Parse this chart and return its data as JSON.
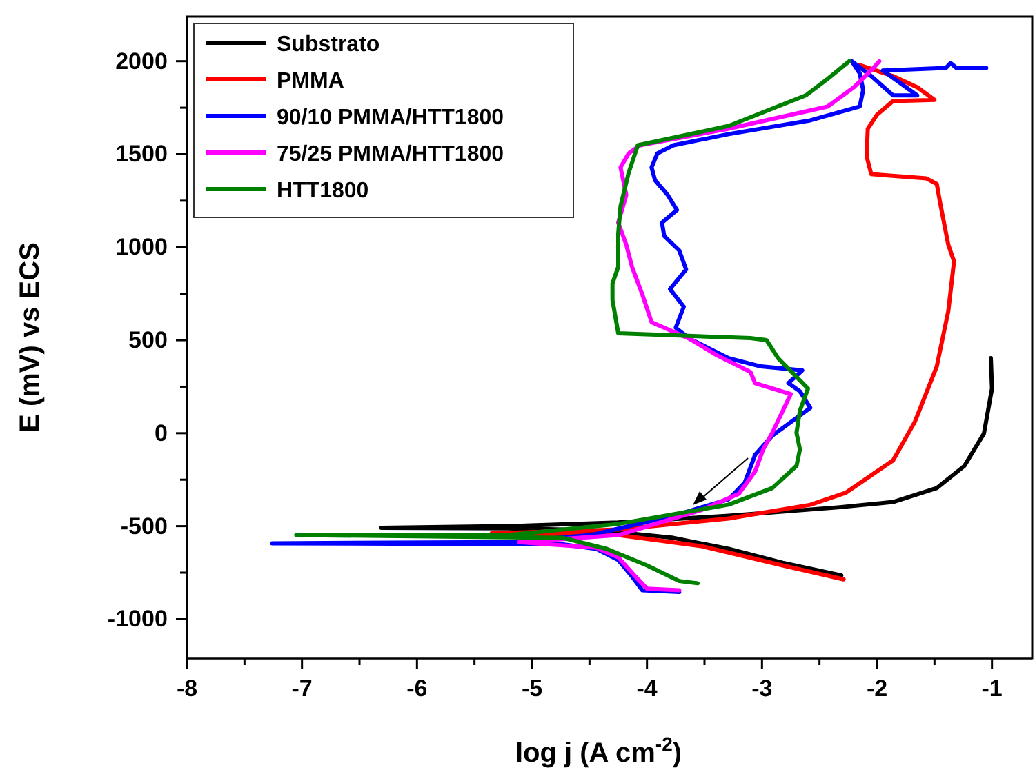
{
  "chart_data": {
    "type": "line",
    "xlabel": "log j (A cm$^{-2}$)",
    "ylabel": "E (mV) vs ECS",
    "xlim": [
      -8,
      -0.65
    ],
    "ylim": [
      -1210,
      2240
    ],
    "xticks": [
      -8,
      {
        "value": -7.5,
        "label": null
      },
      -7,
      {
        "value": -6.5,
        "label": null
      },
      -6,
      {
        "value": -5.5,
        "label": null
      },
      -5,
      {
        "value": -4.5,
        "label": null
      },
      -4,
      {
        "value": -3.5,
        "label": null
      },
      -3,
      {
        "value": -2.5,
        "label": null
      },
      -2,
      {
        "value": -1.5,
        "label": null
      },
      -1
    ],
    "yticks": [
      -1000,
      {
        "value": -750,
        "label": null
      },
      -500,
      {
        "value": -250,
        "label": null
      },
      0,
      {
        "value": 250,
        "label": null
      },
      500,
      {
        "value": 750,
        "label": null
      },
      1000,
      {
        "value": 1250,
        "label": null
      },
      1500,
      {
        "value": 1750,
        "label": null
      },
      2000
    ],
    "grid": false,
    "legend": "top left",
    "marker": "none",
    "line_style": "solid",
    "series": [
      {
        "name": "Substrato",
        "color": "#000000",
        "x": [
          -2.31,
          -2.82,
          -3.29,
          -3.77,
          -4.25,
          -4.73,
          -5.21,
          -6.31,
          -5.21,
          -4.25,
          -3.29,
          -2.34,
          -1.86,
          -1.48,
          -1.24,
          -1.07,
          -1.0,
          -1.01
        ],
        "values": [
          -765,
          -697,
          -622,
          -563,
          -533,
          -518,
          -512,
          -509,
          -500,
          -480,
          -444,
          -399,
          -370,
          -295,
          -176,
          -2,
          240,
          404
        ]
      },
      {
        "name": "PMMA",
        "color": "#ff0000",
        "x": [
          -2.29,
          -2.82,
          -3.53,
          -4.25,
          -5.35,
          -4.25,
          -3.29,
          -2.58,
          -2.27,
          -1.86,
          -1.67,
          -1.48,
          -1.38,
          -1.33,
          -1.38,
          -1.45,
          -1.48,
          -1.57,
          -2.05,
          -2.09,
          -2.08,
          -2.0,
          -1.86,
          -1.5,
          -1.65,
          -1.86,
          -2.15
        ],
        "values": [
          -786,
          -711,
          -607,
          -548,
          -539,
          -518,
          -459,
          -385,
          -320,
          -146,
          62,
          359,
          656,
          924,
          1013,
          1236,
          1340,
          1370,
          1393,
          1489,
          1637,
          1712,
          1786,
          1792,
          1860,
          1920,
          1979
        ]
      },
      {
        "name": "90/10 PMMA/HTT1800",
        "color": "#0000ff",
        "x": [
          -3.72,
          -4.04,
          -4.13,
          -4.25,
          -4.44,
          -4.73,
          -7.26,
          -5.21,
          -4.49,
          -3.77,
          -3.29,
          -3.15,
          -3.06,
          -2.91,
          -2.58,
          -2.67,
          -2.77,
          -2.65,
          -3.01,
          -3.29,
          -3.63,
          -3.75,
          -3.68,
          -3.8,
          -3.66,
          -3.72,
          -3.85,
          -3.87,
          -3.74,
          -3.82,
          -3.93,
          -3.96,
          -3.91,
          -3.77,
          -3.29,
          -2.58,
          -2.15,
          -2.12,
          -2.15,
          -2.22,
          -2.05,
          -1.86,
          -1.65,
          -1.95,
          -1.4,
          -1.36,
          -1.31,
          -1.05
        ],
        "values": [
          -854,
          -845,
          -771,
          -682,
          -622,
          -598,
          -592,
          -586,
          -548,
          -444,
          -355,
          -266,
          -117,
          -13,
          136,
          225,
          269,
          338,
          359,
          403,
          508,
          567,
          680,
          775,
          880,
          983,
          1060,
          1132,
          1200,
          1281,
          1360,
          1429,
          1504,
          1548,
          1608,
          1682,
          1756,
          1845,
          1935,
          2000,
          1920,
          1816,
          1816,
          1950,
          1964,
          1990,
          1964,
          1964
        ]
      },
      {
        "name": "75/25 PMMA/HTT1800",
        "color": "#ff00ff",
        "x": [
          -3.72,
          -4.0,
          -4.1,
          -4.25,
          -4.44,
          -5.11,
          -4.25,
          -3.53,
          -3.2,
          -3.06,
          -2.99,
          -2.91,
          -2.75,
          -3.06,
          -3.1,
          -3.39,
          -3.63,
          -3.96,
          -4.04,
          -4.13,
          -4.18,
          -4.25,
          -4.18,
          -4.23,
          -4.16,
          -4.06,
          -3.29,
          -2.43,
          -2.2,
          -2.03,
          -1.98
        ],
        "values": [
          -845,
          -836,
          -771,
          -667,
          -616,
          -586,
          -548,
          -414,
          -325,
          -206,
          -88,
          2,
          210,
          269,
          329,
          418,
          508,
          597,
          745,
          894,
          1013,
          1132,
          1281,
          1429,
          1504,
          1548,
          1637,
          1756,
          1860,
          1964,
          2000
        ]
      },
      {
        "name": "HTT1800",
        "color": "#008000",
        "x": [
          -3.56,
          -3.72,
          -4.0,
          -4.35,
          -4.73,
          -7.05,
          -5.21,
          -4.25,
          -3.29,
          -2.91,
          -2.7,
          -2.67,
          -2.7,
          -2.67,
          -2.6,
          -2.86,
          -2.96,
          -3.1,
          -4.25,
          -4.3,
          -4.3,
          -4.25,
          -4.25,
          -4.23,
          -4.16,
          -4.08,
          -3.29,
          -2.62,
          -2.43,
          -2.24
        ],
        "values": [
          -807,
          -795,
          -711,
          -622,
          -563,
          -548,
          -548,
          -488,
          -384,
          -295,
          -176,
          -87,
          2,
          121,
          240,
          403,
          500,
          511,
          537,
          716,
          805,
          894,
          1072,
          1221,
          1399,
          1548,
          1652,
          1816,
          1905,
          2000
        ]
      }
    ]
  }
}
